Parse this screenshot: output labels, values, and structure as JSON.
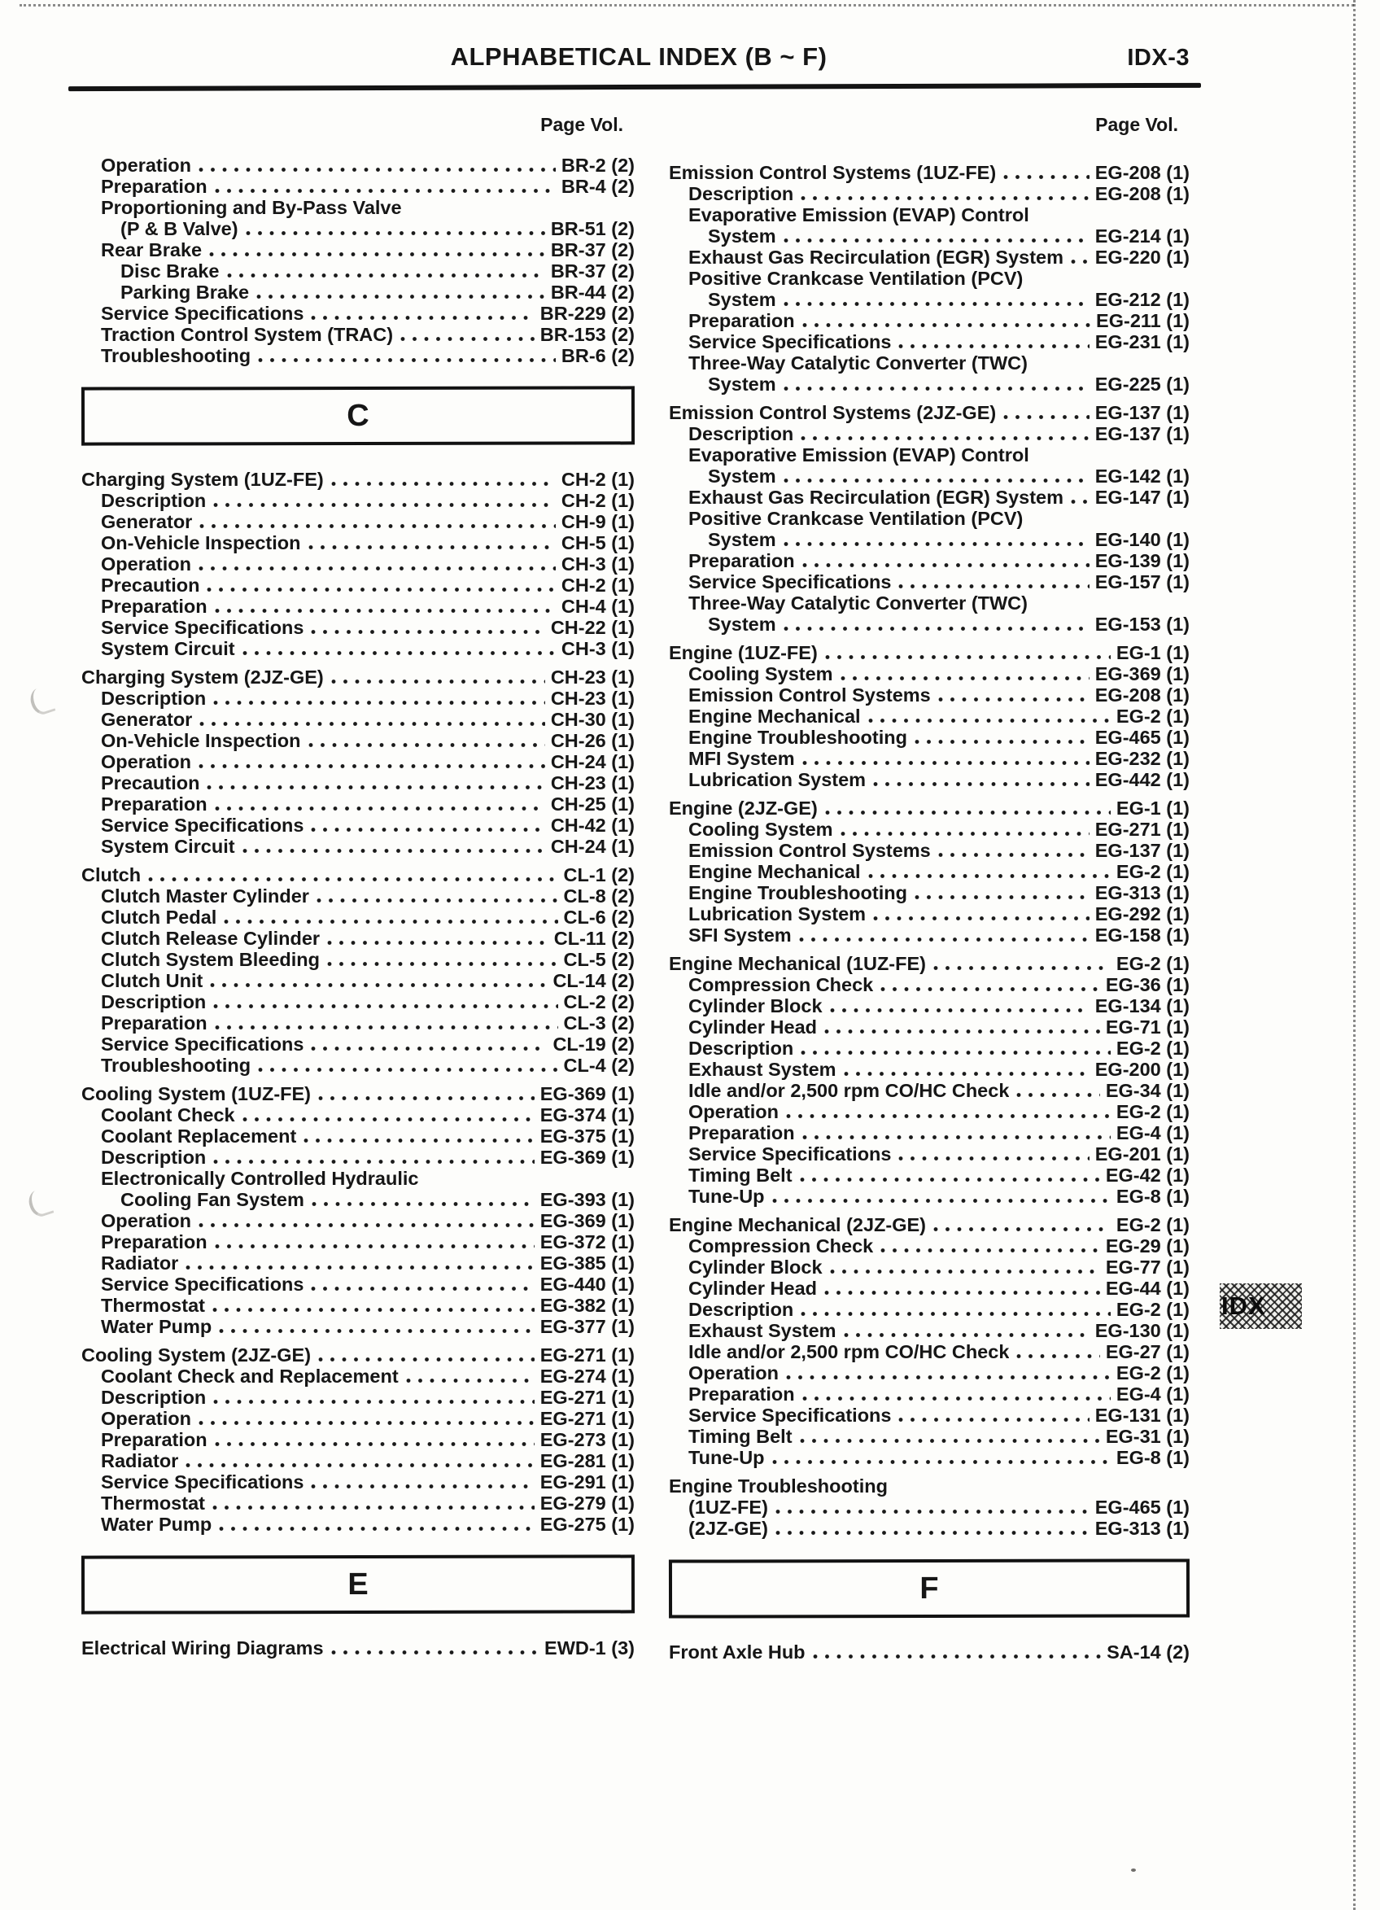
{
  "header": {
    "title": "ALPHABETICAL INDEX (B ~ F)",
    "page_number": "IDX-3"
  },
  "side_tab": {
    "label": "IDX"
  },
  "columns": [
    {
      "page_vol_label": "Page Vol.",
      "items": [
        {
          "text": "Operation",
          "level": 1,
          "page": "BR-2 (2)"
        },
        {
          "text": "Preparation",
          "level": 1,
          "page": "BR-4 (2)"
        },
        {
          "text": "Proportioning and By-Pass Valve",
          "level": 1
        },
        {
          "text": "(P & B Valve)",
          "level": 2,
          "page": "BR-51 (2)"
        },
        {
          "text": "Rear Brake",
          "level": 1,
          "page": "BR-37 (2)"
        },
        {
          "text": "Disc Brake",
          "level": 2,
          "page": "BR-37 (2)"
        },
        {
          "text": "Parking Brake",
          "level": 2,
          "page": "BR-44 (2)"
        },
        {
          "text": "Service Specifications",
          "level": 1,
          "page": "BR-229 (2)"
        },
        {
          "text": "Traction Control System (TRAC)",
          "level": 1,
          "page": "BR-153 (2)"
        },
        {
          "text": "Troubleshooting",
          "level": 1,
          "page": "BR-6 (2)"
        },
        {
          "section_letter": "C"
        },
        {
          "text": "Charging System (1UZ-FE)",
          "level": 0,
          "page": "CH-2 (1)"
        },
        {
          "text": "Description",
          "level": 1,
          "page": "CH-2 (1)"
        },
        {
          "text": "Generator",
          "level": 1,
          "page": "CH-9 (1)"
        },
        {
          "text": "On-Vehicle Inspection",
          "level": 1,
          "page": "CH-5 (1)"
        },
        {
          "text": "Operation",
          "level": 1,
          "page": "CH-3 (1)"
        },
        {
          "text": "Precaution",
          "level": 1,
          "page": "CH-2 (1)"
        },
        {
          "text": "Preparation",
          "level": 1,
          "page": "CH-4 (1)"
        },
        {
          "text": "Service Specifications",
          "level": 1,
          "page": "CH-22 (1)"
        },
        {
          "text": "System Circuit",
          "level": 1,
          "page": "CH-3 (1)"
        },
        {
          "text": "Charging System (2JZ-GE)",
          "level": 0,
          "page": "CH-23 (1)"
        },
        {
          "text": "Description",
          "level": 1,
          "page": "CH-23 (1)"
        },
        {
          "text": "Generator",
          "level": 1,
          "page": "CH-30 (1)"
        },
        {
          "text": "On-Vehicle Inspection",
          "level": 1,
          "page": "CH-26 (1)"
        },
        {
          "text": "Operation",
          "level": 1,
          "page": "CH-24 (1)"
        },
        {
          "text": "Precaution",
          "level": 1,
          "page": "CH-23 (1)"
        },
        {
          "text": "Preparation",
          "level": 1,
          "page": "CH-25 (1)"
        },
        {
          "text": "Service Specifications",
          "level": 1,
          "page": "CH-42 (1)"
        },
        {
          "text": "System Circuit",
          "level": 1,
          "page": "CH-24 (1)"
        },
        {
          "text": "Clutch",
          "level": 0,
          "page": "CL-1 (2)"
        },
        {
          "text": "Clutch Master Cylinder",
          "level": 1,
          "page": "CL-8 (2)"
        },
        {
          "text": "Clutch Pedal",
          "level": 1,
          "page": "CL-6 (2)"
        },
        {
          "text": "Clutch Release Cylinder",
          "level": 1,
          "page": "CL-11 (2)"
        },
        {
          "text": "Clutch System Bleeding",
          "level": 1,
          "page": "CL-5 (2)"
        },
        {
          "text": "Clutch Unit",
          "level": 1,
          "page": "CL-14 (2)"
        },
        {
          "text": "Description",
          "level": 1,
          "page": "CL-2 (2)"
        },
        {
          "text": "Preparation",
          "level": 1,
          "page": "CL-3 (2)"
        },
        {
          "text": "Service Specifications",
          "level": 1,
          "page": "CL-19 (2)"
        },
        {
          "text": "Troubleshooting",
          "level": 1,
          "page": "CL-4 (2)"
        },
        {
          "text": "Cooling System (1UZ-FE)",
          "level": 0,
          "page": "EG-369 (1)"
        },
        {
          "text": "Coolant Check",
          "level": 1,
          "page": "EG-374 (1)"
        },
        {
          "text": "Coolant Replacement",
          "level": 1,
          "page": "EG-375 (1)"
        },
        {
          "text": "Description",
          "level": 1,
          "page": "EG-369 (1)"
        },
        {
          "text": "Electronically Controlled Hydraulic",
          "level": 1
        },
        {
          "text": "Cooling Fan System",
          "level": 2,
          "page": "EG-393 (1)"
        },
        {
          "text": "Operation",
          "level": 1,
          "page": "EG-369 (1)"
        },
        {
          "text": "Preparation",
          "level": 1,
          "page": "EG-372 (1)"
        },
        {
          "text": "Radiator",
          "level": 1,
          "page": "EG-385 (1)"
        },
        {
          "text": "Service Specifications",
          "level": 1,
          "page": "EG-440 (1)"
        },
        {
          "text": "Thermostat",
          "level": 1,
          "page": "EG-382 (1)"
        },
        {
          "text": "Water Pump",
          "level": 1,
          "page": "EG-377 (1)"
        },
        {
          "text": "Cooling System (2JZ-GE)",
          "level": 0,
          "page": "EG-271 (1)"
        },
        {
          "text": "Coolant Check and Replacement",
          "level": 1,
          "page": "EG-274 (1)"
        },
        {
          "text": "Description",
          "level": 1,
          "page": "EG-271 (1)"
        },
        {
          "text": "Operation",
          "level": 1,
          "page": "EG-271 (1)"
        },
        {
          "text": "Preparation",
          "level": 1,
          "page": "EG-273 (1)"
        },
        {
          "text": "Radiator",
          "level": 1,
          "page": "EG-281 (1)"
        },
        {
          "text": "Service Specifications",
          "level": 1,
          "page": "EG-291 (1)"
        },
        {
          "text": "Thermostat",
          "level": 1,
          "page": "EG-279 (1)"
        },
        {
          "text": "Water Pump",
          "level": 1,
          "page": "EG-275 (1)"
        },
        {
          "section_letter": "E"
        },
        {
          "text": "Electrical Wiring Diagrams",
          "level": 0,
          "page": "EWD-1 (3)"
        }
      ]
    },
    {
      "page_vol_label": "Page Vol.",
      "items": [
        {
          "text": "Emission Control Systems (1UZ-FE)",
          "level": 0,
          "page": "EG-208 (1)"
        },
        {
          "text": "Description",
          "level": 1,
          "page": "EG-208 (1)"
        },
        {
          "text": "Evaporative Emission (EVAP) Control",
          "level": 1
        },
        {
          "text": "System",
          "level": 2,
          "page": "EG-214 (1)"
        },
        {
          "text": "Exhaust Gas Recirculation (EGR) System",
          "level": 1,
          "page": "EG-220 (1)"
        },
        {
          "text": "Positive Crankcase Ventilation (PCV)",
          "level": 1
        },
        {
          "text": "System",
          "level": 2,
          "page": "EG-212 (1)"
        },
        {
          "text": "Preparation",
          "level": 1,
          "page": "EG-211 (1)"
        },
        {
          "text": "Service Specifications",
          "level": 1,
          "page": "EG-231 (1)"
        },
        {
          "text": "Three-Way Catalytic Converter (TWC)",
          "level": 1
        },
        {
          "text": "System",
          "level": 2,
          "page": "EG-225 (1)"
        },
        {
          "text": "Emission Control Systems (2JZ-GE)",
          "level": 0,
          "page": "EG-137 (1)"
        },
        {
          "text": "Description",
          "level": 1,
          "page": "EG-137 (1)"
        },
        {
          "text": "Evaporative Emission (EVAP) Control",
          "level": 1
        },
        {
          "text": "System",
          "level": 2,
          "page": "EG-142 (1)"
        },
        {
          "text": "Exhaust Gas Recirculation (EGR) System",
          "level": 1,
          "page": "EG-147 (1)"
        },
        {
          "text": "Positive Crankcase Ventilation (PCV)",
          "level": 1
        },
        {
          "text": "System",
          "level": 2,
          "page": "EG-140 (1)"
        },
        {
          "text": "Preparation",
          "level": 1,
          "page": "EG-139 (1)"
        },
        {
          "text": "Service Specifications",
          "level": 1,
          "page": "EG-157 (1)"
        },
        {
          "text": "Three-Way Catalytic Converter (TWC)",
          "level": 1
        },
        {
          "text": "System",
          "level": 2,
          "page": "EG-153 (1)"
        },
        {
          "text": "Engine (1UZ-FE)",
          "level": 0,
          "page": "EG-1 (1)"
        },
        {
          "text": "Cooling System",
          "level": 1,
          "page": "EG-369 (1)"
        },
        {
          "text": "Emission Control Systems",
          "level": 1,
          "page": "EG-208 (1)"
        },
        {
          "text": "Engine Mechanical",
          "level": 1,
          "page": "EG-2 (1)"
        },
        {
          "text": "Engine Troubleshooting",
          "level": 1,
          "page": "EG-465 (1)"
        },
        {
          "text": "MFI System",
          "level": 1,
          "page": "EG-232 (1)"
        },
        {
          "text": "Lubrication System",
          "level": 1,
          "page": "EG-442 (1)"
        },
        {
          "text": "Engine (2JZ-GE)",
          "level": 0,
          "page": "EG-1 (1)"
        },
        {
          "text": "Cooling System",
          "level": 1,
          "page": "EG-271 (1)"
        },
        {
          "text": "Emission Control Systems",
          "level": 1,
          "page": "EG-137 (1)"
        },
        {
          "text": "Engine Mechanical",
          "level": 1,
          "page": "EG-2 (1)"
        },
        {
          "text": "Engine Troubleshooting",
          "level": 1,
          "page": "EG-313 (1)"
        },
        {
          "text": "Lubrication System",
          "level": 1,
          "page": "EG-292 (1)"
        },
        {
          "text": "SFI System",
          "level": 1,
          "page": "EG-158 (1)"
        },
        {
          "text": "Engine Mechanical (1UZ-FE)",
          "level": 0,
          "page": "EG-2 (1)"
        },
        {
          "text": "Compression Check",
          "level": 1,
          "page": "EG-36 (1)"
        },
        {
          "text": "Cylinder Block",
          "level": 1,
          "page": "EG-134 (1)"
        },
        {
          "text": "Cylinder Head",
          "level": 1,
          "page": "EG-71 (1)"
        },
        {
          "text": "Description",
          "level": 1,
          "page": "EG-2 (1)"
        },
        {
          "text": "Exhaust System",
          "level": 1,
          "page": "EG-200 (1)"
        },
        {
          "text": "Idle and/or 2,500 rpm CO/HC Check",
          "level": 1,
          "page": "EG-34 (1)"
        },
        {
          "text": "Operation",
          "level": 1,
          "page": "EG-2 (1)"
        },
        {
          "text": "Preparation",
          "level": 1,
          "page": "EG-4 (1)"
        },
        {
          "text": "Service Specifications",
          "level": 1,
          "page": "EG-201 (1)"
        },
        {
          "text": "Timing Belt",
          "level": 1,
          "page": "EG-42 (1)"
        },
        {
          "text": "Tune-Up",
          "level": 1,
          "page": "EG-8 (1)"
        },
        {
          "text": "Engine Mechanical (2JZ-GE)",
          "level": 0,
          "page": "EG-2 (1)"
        },
        {
          "text": "Compression Check",
          "level": 1,
          "page": "EG-29 (1)"
        },
        {
          "text": "Cylinder Block",
          "level": 1,
          "page": "EG-77 (1)"
        },
        {
          "text": "Cylinder Head",
          "level": 1,
          "page": "EG-44 (1)"
        },
        {
          "text": "Description",
          "level": 1,
          "page": "EG-2 (1)"
        },
        {
          "text": "Exhaust System",
          "level": 1,
          "page": "EG-130 (1)"
        },
        {
          "text": "Idle and/or 2,500 rpm CO/HC Check",
          "level": 1,
          "page": "EG-27 (1)"
        },
        {
          "text": "Operation",
          "level": 1,
          "page": "EG-2 (1)"
        },
        {
          "text": "Preparation",
          "level": 1,
          "page": "EG-4 (1)"
        },
        {
          "text": "Service Specifications",
          "level": 1,
          "page": "EG-131 (1)"
        },
        {
          "text": "Timing Belt",
          "level": 1,
          "page": "EG-31 (1)"
        },
        {
          "text": "Tune-Up",
          "level": 1,
          "page": "EG-8 (1)"
        },
        {
          "text": "Engine Troubleshooting",
          "level": 0
        },
        {
          "text": "(1UZ-FE)",
          "level": 1,
          "page": "EG-465 (1)"
        },
        {
          "text": "(2JZ-GE)",
          "level": 1,
          "page": "EG-313 (1)"
        },
        {
          "section_letter": "F"
        },
        {
          "text": "Front Axle Hub",
          "level": 0,
          "page": "SA-14 (2)"
        }
      ]
    }
  ]
}
